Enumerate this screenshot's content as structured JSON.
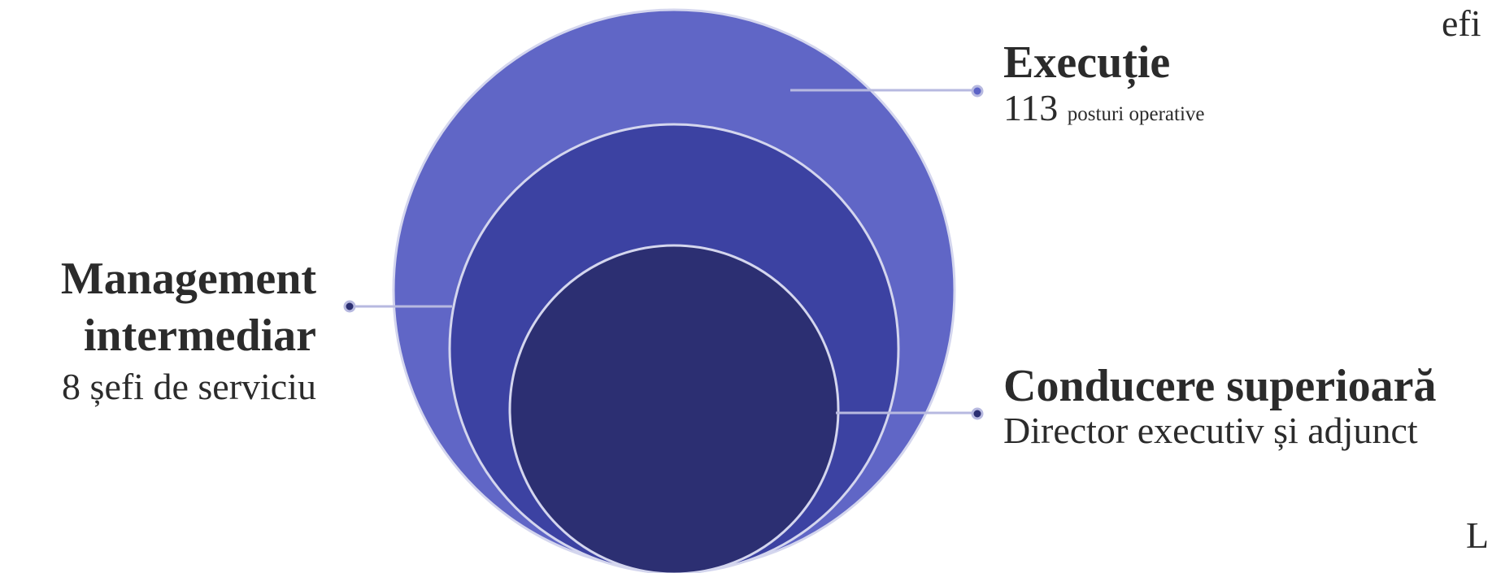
{
  "diagram": {
    "colors": {
      "outer_circle": "#6066c6",
      "middle_circle": "#3c42a2",
      "inner_circle": "#2c2f72",
      "circle_stroke": "#d4d6ee",
      "leader_line": "#b7b9e0",
      "dot_light": "#5c63c6",
      "dot_dark": "#2c2f72"
    },
    "levels": [
      {
        "id": "executie",
        "title": "Execuție",
        "count": "113",
        "detail": "posturi operative"
      },
      {
        "id": "management",
        "title_line1": "Management",
        "title_line2": "intermediar",
        "detail": "8 șefi de serviciu"
      },
      {
        "id": "conducere",
        "title": "Conducere superioară",
        "detail": "Director executiv și adjunct"
      }
    ],
    "edge_fragments": {
      "top_right": "efi",
      "bottom_right": "L"
    }
  }
}
